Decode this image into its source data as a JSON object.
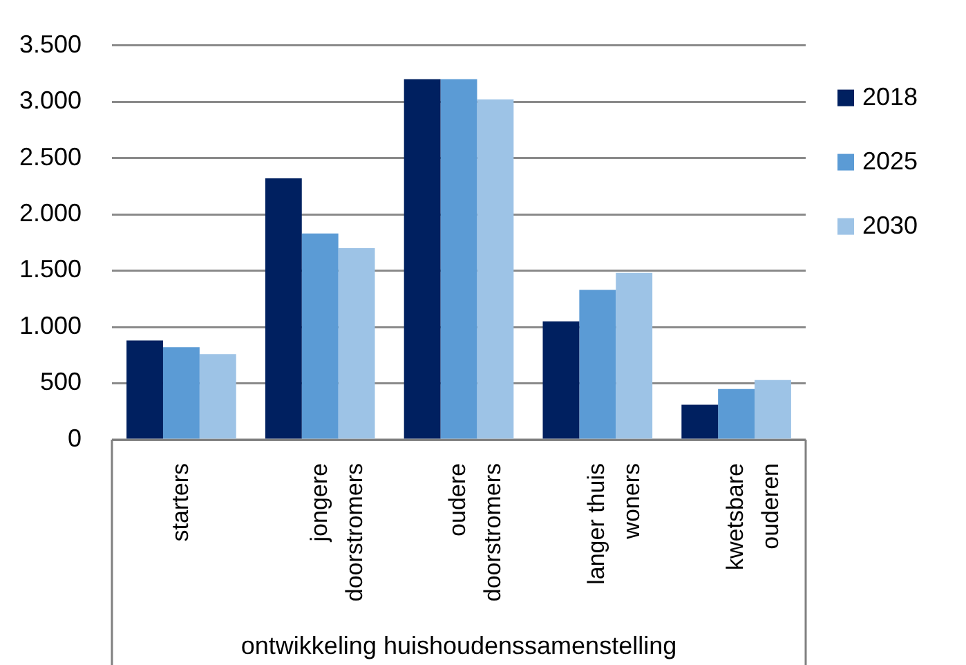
{
  "chart_data": {
    "type": "bar",
    "xlabel": "ontwikkeling huishoudenssamenstelling",
    "categories": [
      "starters",
      "jongere doorstromers",
      "oudere doorstromers",
      "langer thuis woners",
      "kwetsbare ouderen"
    ],
    "series": [
      {
        "name": "2018",
        "color": "#002060",
        "values": [
          880,
          2320,
          3200,
          1050,
          310
        ]
      },
      {
        "name": "2025",
        "color": "#5b9bd5",
        "values": [
          820,
          1830,
          3200,
          1330,
          450
        ]
      },
      {
        "name": "2030",
        "color": "#9dc3e6",
        "values": [
          760,
          1700,
          3020,
          1480,
          530
        ]
      }
    ],
    "ylim": [
      0,
      3500
    ],
    "yticks": [
      0,
      500,
      {
        "value": 1000,
        "label": "1.000"
      },
      {
        "value": 1500,
        "label": "1.500"
      },
      {
        "value": 2000,
        "label": "2.000"
      },
      {
        "value": 2500,
        "label": "2.500"
      },
      {
        "value": 3000,
        "label": "3.000"
      },
      {
        "value": 3500,
        "label": "3.500"
      }
    ],
    "grid": "y",
    "legend": "right"
  }
}
